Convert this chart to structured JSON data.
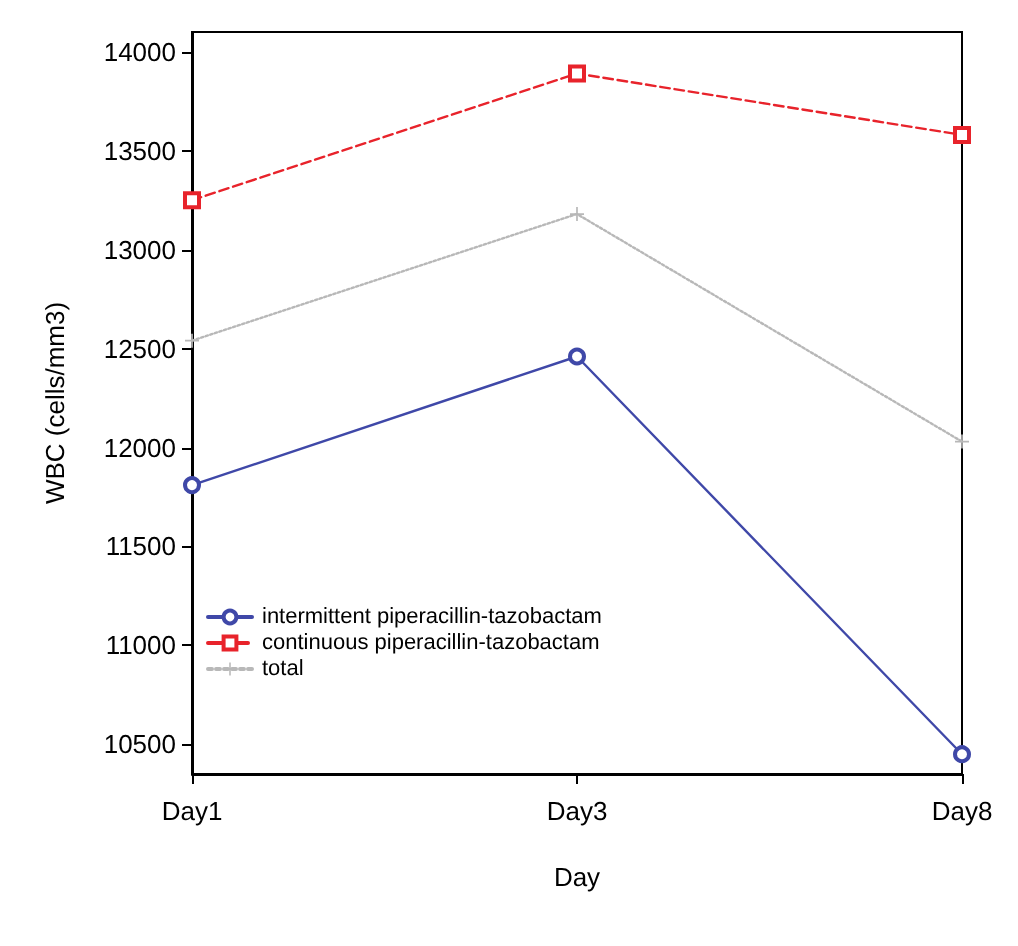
{
  "chart_data": {
    "type": "line",
    "xlabel": "Day",
    "ylabel": "WBC (cells/mm3)",
    "categories": [
      "Day1",
      "Day3",
      "Day8"
    ],
    "series": [
      {
        "name": "intermittent piperacillin-tazobactam",
        "color": "#3f48a8",
        "values": [
          11810,
          12460,
          10450
        ],
        "marker": "circle",
        "line_style": "solid"
      },
      {
        "name": "continuous piperacillin-tazobactam",
        "color": "#e8232b",
        "values": [
          13250,
          13890,
          13580
        ],
        "marker": "square",
        "line_style": "dashed"
      },
      {
        "name": "total",
        "color": "#b8b8b8",
        "values": [
          12540,
          13180,
          12030
        ],
        "marker": "cross",
        "line_style": "dotted"
      }
    ],
    "ylim": [
      10350,
      14100
    ],
    "yticks": [
      10500,
      11000,
      11500,
      12000,
      12500,
      13000,
      13500,
      14000
    ],
    "grid": false,
    "legend": "left"
  }
}
